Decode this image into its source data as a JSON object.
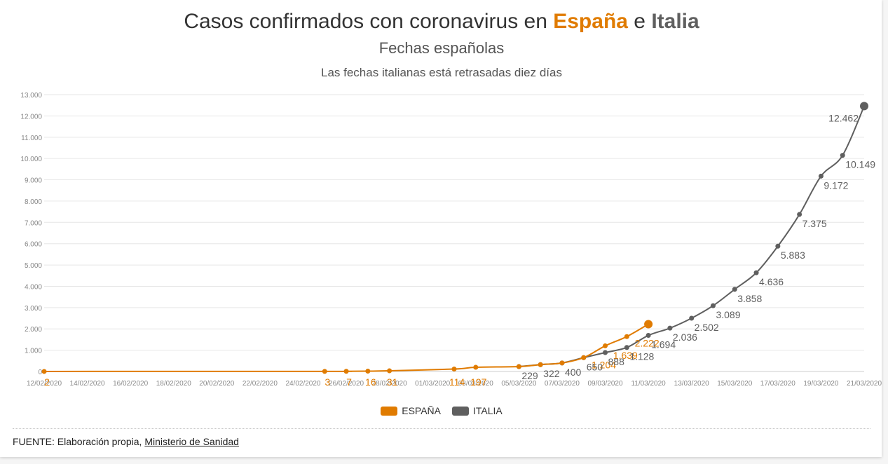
{
  "title": {
    "prefix": "Casos confirmados con coronavirus en ",
    "spain": "España",
    "middle": " e ",
    "italy": "Italia"
  },
  "subtitle": "Fechas españolas",
  "description": "Las fechas italianas está retrasadas diez días",
  "legend": {
    "spain": "ESPAÑA",
    "italy": "ITALIA"
  },
  "source": {
    "label": "FUENTE: Elaboración propia, ",
    "link": "Ministerio de Sanidad"
  },
  "colors": {
    "spain": "#e07b00",
    "italy": "#5f5f5f",
    "grid": "#e6e6e6",
    "tick": "#888888"
  },
  "chart_data": {
    "type": "line",
    "title": "Casos confirmados con coronavirus en España e Italia",
    "subtitle": "Fechas españolas",
    "x_ticks": [
      "12/02/2020",
      "14/02/2020",
      "16/02/2020",
      "18/02/2020",
      "20/02/2020",
      "22/02/2020",
      "24/02/2020",
      "26/02/2020",
      "28/02/2020",
      "01/03/2020",
      "03/03/2020",
      "05/03/2020",
      "07/03/2020",
      "09/03/2020",
      "11/03/2020",
      "13/03/2020",
      "15/03/2020",
      "17/03/2020",
      "19/03/2020",
      "21/03/2020"
    ],
    "y_ticks": [
      "0",
      "1.000",
      "2.000",
      "3.000",
      "4.000",
      "5.000",
      "6.000",
      "7.000",
      "8.000",
      "9.000",
      "10.000",
      "11.000",
      "12.000",
      "13.000"
    ],
    "ylim": [
      0,
      13000
    ],
    "grid": true,
    "legend_position": "bottom",
    "series": [
      {
        "name": "ESPAÑA",
        "points": [
          {
            "x": "12/02/2020",
            "y": 2,
            "label": "2"
          },
          {
            "x": "25/02/2020",
            "y": 3,
            "label": "3"
          },
          {
            "x": "26/02/2020",
            "y": 7,
            "label": "7"
          },
          {
            "x": "27/02/2020",
            "y": 16,
            "label": "16"
          },
          {
            "x": "28/02/2020",
            "y": 31,
            "label": "31"
          },
          {
            "x": "02/03/2020",
            "y": 114,
            "label": "114"
          },
          {
            "x": "03/03/2020",
            "y": 197,
            "label": "197"
          },
          {
            "x": "05/03/2020",
            "y": 229,
            "label": ""
          },
          {
            "x": "06/03/2020",
            "y": 322,
            "label": ""
          },
          {
            "x": "07/03/2020",
            "y": 400,
            "label": ""
          },
          {
            "x": "08/03/2020",
            "y": 650,
            "label": ""
          },
          {
            "x": "09/03/2020",
            "y": 1204,
            "label": "1.204"
          },
          {
            "x": "10/03/2020",
            "y": 1639,
            "label": "1.639"
          },
          {
            "x": "11/03/2020",
            "y": 2222,
            "label": "2.222"
          }
        ]
      },
      {
        "name": "ITALIA",
        "points": [
          {
            "x": "05/03/2020",
            "y": 229,
            "label": "229"
          },
          {
            "x": "06/03/2020",
            "y": 322,
            "label": "322"
          },
          {
            "x": "07/03/2020",
            "y": 400,
            "label": "400"
          },
          {
            "x": "08/03/2020",
            "y": 650,
            "label": "650"
          },
          {
            "x": "09/03/2020",
            "y": 888,
            "label": "888"
          },
          {
            "x": "10/03/2020",
            "y": 1128,
            "label": "1.128"
          },
          {
            "x": "11/03/2020",
            "y": 1694,
            "label": "1.694"
          },
          {
            "x": "12/03/2020",
            "y": 2036,
            "label": "2.036"
          },
          {
            "x": "13/03/2020",
            "y": 2502,
            "label": "2.502"
          },
          {
            "x": "14/03/2020",
            "y": 3089,
            "label": "3.089"
          },
          {
            "x": "15/03/2020",
            "y": 3858,
            "label": "3.858"
          },
          {
            "x": "16/03/2020",
            "y": 4636,
            "label": "4.636"
          },
          {
            "x": "17/03/2020",
            "y": 5883,
            "label": "5.883"
          },
          {
            "x": "18/03/2020",
            "y": 7375,
            "label": "7.375"
          },
          {
            "x": "19/03/2020",
            "y": 9172,
            "label": "9.172"
          },
          {
            "x": "20/03/2020",
            "y": 10149,
            "label": "10.149"
          },
          {
            "x": "21/03/2020",
            "y": 12462,
            "label": "12.462"
          }
        ]
      }
    ]
  }
}
